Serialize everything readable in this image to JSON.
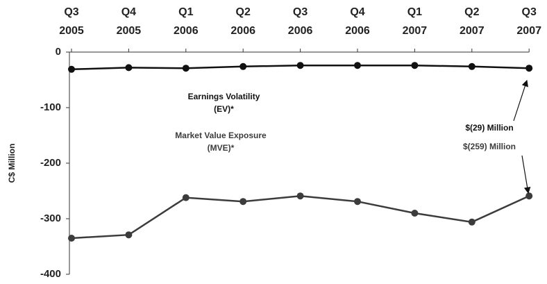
{
  "chart_data": {
    "type": "line",
    "y_label": "C$ Million",
    "categories": [
      "Q3 2005",
      "Q4 2005",
      "Q1 2006",
      "Q2 2006",
      "Q3 2006",
      "Q4 2006",
      "Q1 2007",
      "Q2 2007",
      "Q3 2007"
    ],
    "series": [
      {
        "name": "Earnings Volatility (EV)*",
        "color": "#111111",
        "values": [
          -31,
          -28,
          -29,
          -26,
          -24,
          -24,
          -24,
          -26,
          -29
        ]
      },
      {
        "name": "Market Value Exposure (MVE)*",
        "color": "#3c3c3c",
        "values": [
          -335,
          -329,
          -262,
          -269,
          -259,
          -269,
          -290,
          -306,
          -259
        ]
      }
    ],
    "annotations": [
      "$(29) Million",
      "$(259) Million"
    ],
    "ylim": [
      -400,
      0
    ],
    "yticks": [
      0,
      -100,
      -200,
      -300,
      -400
    ]
  }
}
